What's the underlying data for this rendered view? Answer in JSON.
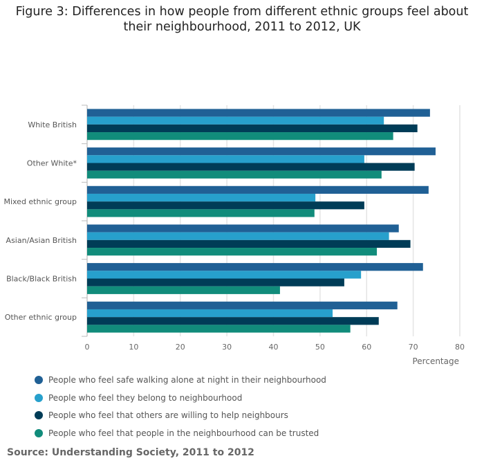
{
  "chart_data": {
    "type": "bar",
    "orientation": "horizontal",
    "title": "Figure 3: Differences in how people from different ethnic groups feel about their neighbourhood, 2011 to 2012, UK",
    "xlabel": "Percentage",
    "ylabel": "",
    "xlim": [
      0,
      80
    ],
    "xticks": [
      0,
      10,
      20,
      30,
      40,
      50,
      60,
      70,
      80
    ],
    "grid": true,
    "legend": "bottom",
    "categories": [
      "White British",
      "Other White*",
      "Mixed ethnic group",
      "Asian/Asian British",
      "Black/Black British",
      "Other ethnic group"
    ],
    "series": [
      {
        "name": "People who feel safe walking alone at night in their neighbourhood",
        "color": "#206095",
        "values": [
          73.6,
          74.8,
          73.3,
          66.9,
          72.1,
          66.6
        ]
      },
      {
        "name": "People who feel they belong to neighbourhood",
        "color": "#27a0cc",
        "values": [
          63.7,
          59.5,
          49.0,
          64.8,
          58.8,
          52.7
        ]
      },
      {
        "name": "People who feel that others are willing to help neighbours",
        "color": "#003c57",
        "values": [
          70.9,
          70.3,
          59.5,
          69.4,
          55.2,
          62.6
        ]
      },
      {
        "name": "People who feel that people in the neighbourhood can be trusted",
        "color": "#118c7b",
        "values": [
          65.7,
          63.2,
          48.8,
          62.2,
          41.4,
          56.5
        ]
      }
    ]
  },
  "source": "Source: Understanding Society, 2011 to 2012"
}
